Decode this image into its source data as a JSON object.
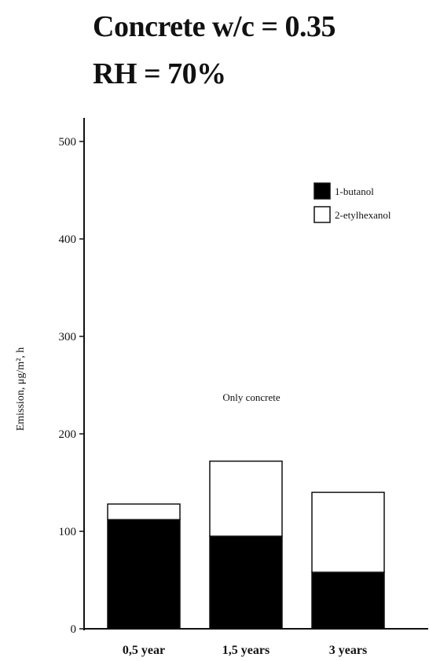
{
  "title_lines": [
    "Concrete w/c = 0.35",
    "RH = 70%"
  ],
  "chart_data": {
    "type": "bar",
    "stacked": true,
    "categories": [
      "0,5 year",
      "1,5 years",
      "3 years"
    ],
    "series": [
      {
        "name": "1-butanol",
        "values": [
          112,
          95,
          58
        ],
        "color": "#000000"
      },
      {
        "name": "2-etylhexanol",
        "values": [
          16,
          77,
          82
        ],
        "color": "#ffffff"
      }
    ],
    "ylabel": "Emission, μg/m², h",
    "ylim": [
      0,
      500
    ],
    "yticks": [
      0,
      100,
      200,
      300,
      400,
      500
    ],
    "annotation": "Only concrete",
    "legend_position": "top-right",
    "grid": false
  }
}
